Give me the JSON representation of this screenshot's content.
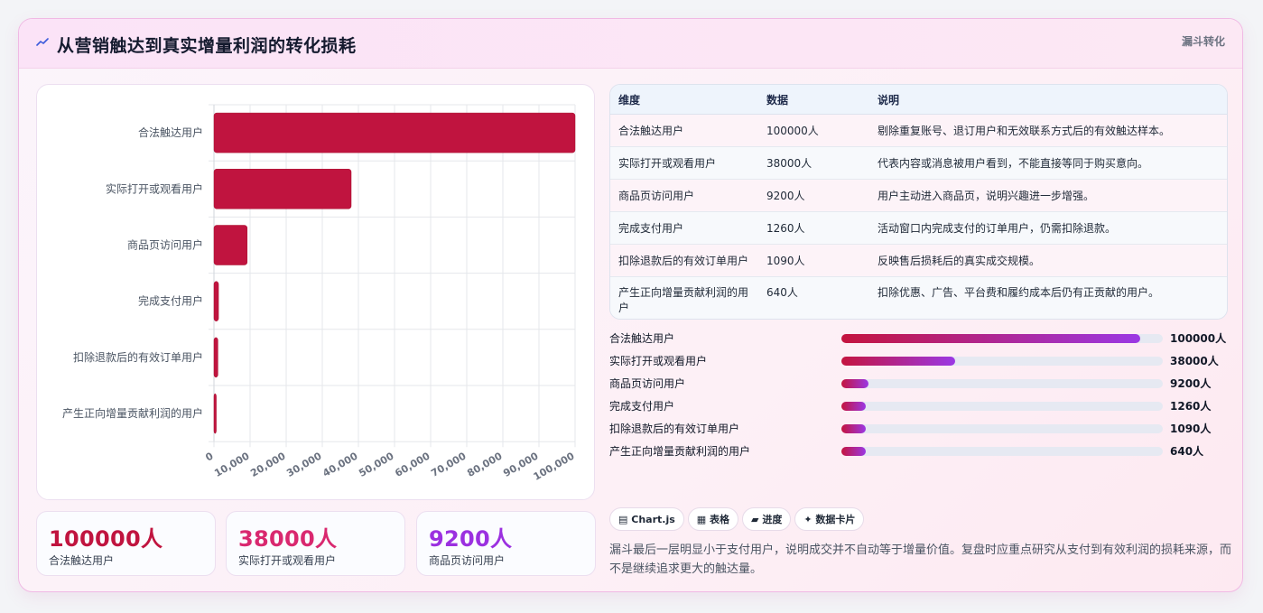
{
  "header": {
    "icon": "trend-line-icon",
    "title": "从营销触达到真实增量利润的转化损耗",
    "tag": "漏斗转化"
  },
  "chart_data": {
    "type": "bar",
    "orientation": "horizontal",
    "categories": [
      "合法触达用户",
      "实际打开或观看用户",
      "商品页访问用户",
      "完成支付用户",
      "扣除退款后的有效订单用户",
      "产生正向增量贡献利润的用户"
    ],
    "values": [
      100000,
      38000,
      9200,
      1260,
      1090,
      640
    ],
    "xlim": [
      0,
      100000
    ],
    "xticks": [
      0,
      10000,
      20000,
      30000,
      40000,
      50000,
      60000,
      70000,
      80000,
      90000,
      100000
    ],
    "xtick_labels": [
      "0",
      "10,000",
      "20,000",
      "30,000",
      "40,000",
      "50,000",
      "60,000",
      "70,000",
      "80,000",
      "90,000",
      "100,000"
    ],
    "bar_color": "#c0143f",
    "grid": true,
    "legend": "none"
  },
  "stats": [
    {
      "value": "100000人",
      "label": "合法触达用户",
      "color": "#c0143f"
    },
    {
      "value": "38000人",
      "label": "实际打开或观看用户",
      "color": "#d9286f"
    },
    {
      "value": "9200人",
      "label": "商品页访问用户",
      "color": "#9b30e0"
    }
  ],
  "table": {
    "headers": [
      "维度",
      "数据",
      "说明"
    ],
    "rows": [
      [
        "合法触达用户",
        "100000人",
        "剔除重复账号、退订用户和无效联系方式后的有效触达样本。"
      ],
      [
        "实际打开或观看用户",
        "38000人",
        "代表内容或消息被用户看到，不能直接等同于购买意向。"
      ],
      [
        "商品页访问用户",
        "9200人",
        "用户主动进入商品页，说明兴趣进一步增强。"
      ],
      [
        "完成支付用户",
        "1260人",
        "活动窗口内完成支付的订单用户，仍需扣除退款。"
      ],
      [
        "扣除退款后的有效订单用户",
        "1090人",
        "反映售后损耗后的真实成交规模。"
      ],
      [
        "产生正向增量贡献利润的用户",
        "640人",
        "扣除优惠、广告、平台费和履约成本后仍有正贡献的用户。"
      ]
    ]
  },
  "progress": [
    {
      "label": "合法触达用户",
      "value": "100000人",
      "fraction": 0.93
    },
    {
      "label": "实际打开或观看用户",
      "value": "38000人",
      "fraction": 0.355
    },
    {
      "label": "商品页访问用户",
      "value": "9200人",
      "fraction": 0.085
    },
    {
      "label": "完成支付用户",
      "value": "1260人",
      "fraction": 0.075
    },
    {
      "label": "扣除退款后的有效订单用户",
      "value": "1090人",
      "fraction": 0.075
    },
    {
      "label": "产生正向增量贡献利润的用户",
      "value": "640人",
      "fraction": 0.075
    }
  ],
  "chips": [
    {
      "icon": "chart-icon",
      "glyph": "▤",
      "label": "Chart.js"
    },
    {
      "icon": "table-icon",
      "glyph": "▦",
      "label": "表格"
    },
    {
      "icon": "progress-icon",
      "glyph": "▰",
      "label": "进度"
    },
    {
      "icon": "sparkle-icon",
      "glyph": "✦",
      "label": "数据卡片"
    }
  ],
  "note": "漏斗最后一层明显小于支付用户，说明成交并不自动等于增量价值。复盘时应重点研究从支付到有效利润的损耗来源，而不是继续追求更大的触达量。"
}
